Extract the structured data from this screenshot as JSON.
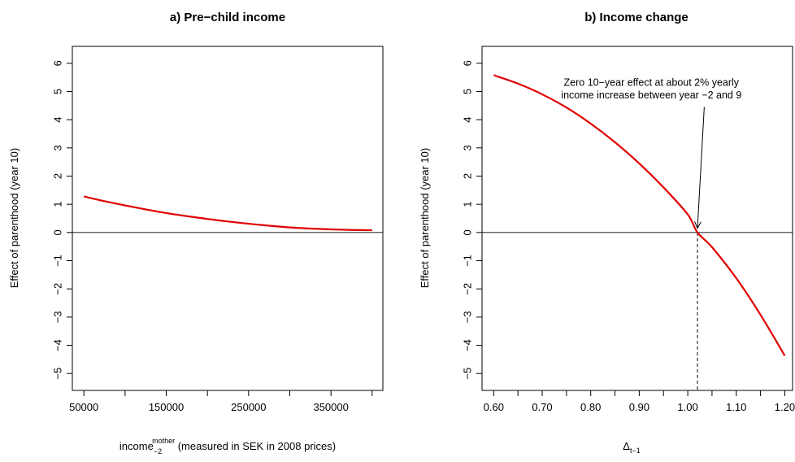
{
  "chart_data": [
    {
      "type": "line",
      "title": "a) Pre−child income",
      "xlabel_main": "income",
      "xlabel_sub": "−2",
      "xlabel_sup": "mother",
      "xlabel_rest": " (measured in SEK in 2008 prices)",
      "ylabel": "Effect of parenthood (year 10)",
      "xlim": [
        36000,
        413000
      ],
      "ylim": [
        -5.6,
        6.6
      ],
      "x_ticks": [
        50000,
        100000,
        150000,
        200000,
        250000,
        300000,
        350000,
        400000
      ],
      "x_tick_labels": [
        {
          "value": 50000,
          "label": "50000"
        },
        {
          "value": 150000,
          "label": "150000"
        },
        {
          "value": 250000,
          "label": "250000"
        },
        {
          "value": 350000,
          "label": "350000"
        }
      ],
      "y_ticks": [
        -5,
        -4,
        -3,
        -2,
        -1,
        0,
        1,
        2,
        3,
        4,
        5,
        6
      ],
      "y_tick_labels": [
        "−5",
        "−4",
        "−3",
        "−2",
        "−1",
        "0",
        "1",
        "2",
        "3",
        "4",
        "5",
        "6"
      ],
      "hline": 0,
      "series": [
        {
          "color": "#e00000",
          "x": [
            50000,
            75000,
            100000,
            125000,
            150000,
            175000,
            200000,
            225000,
            250000,
            275000,
            300000,
            325000,
            350000,
            375000,
            400000
          ],
          "y": [
            1.28,
            1.11,
            0.96,
            0.82,
            0.69,
            0.58,
            0.48,
            0.39,
            0.31,
            0.24,
            0.18,
            0.14,
            0.11,
            0.09,
            0.08
          ]
        }
      ]
    },
    {
      "type": "line",
      "title": "b) Income change",
      "xlabel_main": "Δ",
      "xlabel_sub": "t−1",
      "ylabel": "Effect of parenthood (year 10)",
      "xlim": [
        0.576,
        1.216
      ],
      "ylim": [
        -5.6,
        6.6
      ],
      "x_ticks": [
        0.6,
        0.65,
        0.7,
        0.75,
        0.8,
        0.85,
        0.9,
        0.95,
        1.0,
        1.05,
        1.1,
        1.15,
        1.2
      ],
      "x_tick_labels": [
        {
          "value": 0.6,
          "label": "0.60"
        },
        {
          "value": 0.7,
          "label": "0.70"
        },
        {
          "value": 0.8,
          "label": "0.80"
        },
        {
          "value": 0.9,
          "label": "0.90"
        },
        {
          "value": 1.0,
          "label": "1.00"
        },
        {
          "value": 1.1,
          "label": "1.10"
        },
        {
          "value": 1.2,
          "label": "1.20"
        }
      ],
      "y_ticks": [
        -5,
        -4,
        -3,
        -2,
        -1,
        0,
        1,
        2,
        3,
        4,
        5,
        6
      ],
      "y_tick_labels": [
        "−5",
        "−4",
        "−3",
        "−2",
        "−1",
        "0",
        "1",
        "2",
        "3",
        "4",
        "5",
        "6"
      ],
      "hline": 0,
      "vline": {
        "x": 1.02,
        "y_from": -5.6,
        "y_to": 0,
        "style": "dashed"
      },
      "annotation": {
        "lines": [
          "Zero 10−year effect at about 2% yearly",
          "income increase between year −2 and 9"
        ],
        "text_x": 0.925,
        "text_y": [
          5.2,
          4.75
        ],
        "arrow_from": [
          1.034,
          4.45
        ],
        "arrow_to": [
          1.02,
          0.15
        ]
      },
      "series": [
        {
          "color": "#e00000",
          "x": [
            0.6,
            0.65,
            0.7,
            0.75,
            0.8,
            0.85,
            0.9,
            0.95,
            1.0,
            1.02,
            1.05,
            1.1,
            1.15,
            1.2
          ],
          "y": [
            5.58,
            5.28,
            4.9,
            4.43,
            3.86,
            3.2,
            2.45,
            1.6,
            0.64,
            0.0,
            -0.52,
            -1.62,
            -2.92,
            -4.37
          ]
        }
      ]
    }
  ]
}
